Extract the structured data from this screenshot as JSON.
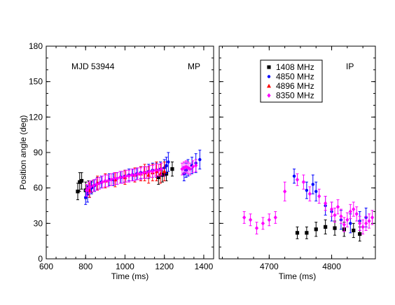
{
  "colors": {
    "1408 MHz": "#000000",
    "4850 MHz": "#0000ff",
    "4896 MHz": "#ff0000",
    "8350 MHz": "#ff00ff"
  },
  "legend": [
    {
      "name": "1408 MHz",
      "marker": "square",
      "color": "#000000"
    },
    {
      "name": "4850 MHz",
      "marker": "circle",
      "color": "#0000ff"
    },
    {
      "name": "4896 MHz",
      "marker": "triangle",
      "color": "#ff0000"
    },
    {
      "name": "8350 MHz",
      "marker": "diamond",
      "color": "#ff00ff"
    }
  ],
  "chart_data": [
    {
      "type": "scatter",
      "panel": "left",
      "annotations": [
        "MJD 53944",
        "MP"
      ],
      "xlabel": "Time (ms)",
      "ylabel": "Position angle (deg)",
      "xlim": [
        600,
        1450
      ],
      "ylim": [
        0,
        180
      ],
      "xticks": [
        600,
        800,
        1000,
        1200,
        1400
      ],
      "yticks": [
        0,
        30,
        60,
        90,
        120,
        150,
        180
      ],
      "grid": false,
      "series": [
        {
          "name": "1408 MHz",
          "color": "#000000",
          "marker": "square",
          "points": [
            [
              760,
              57,
              7
            ],
            [
              770,
              65,
              8
            ],
            [
              780,
              66,
              7
            ],
            [
              800,
              58,
              7
            ],
            [
              815,
              60,
              6
            ],
            [
              830,
              61,
              5
            ],
            [
              1170,
              69,
              6
            ],
            [
              1190,
              71,
              6
            ],
            [
              1210,
              72,
              6
            ],
            [
              1240,
              76,
              6
            ]
          ]
        },
        {
          "name": "4850 MHz",
          "color": "#0000ff",
          "marker": "circle",
          "points": [
            [
              800,
              52,
              6
            ],
            [
              810,
              55,
              7
            ],
            [
              820,
              58,
              6
            ],
            [
              830,
              60,
              5
            ],
            [
              845,
              62,
              5
            ],
            [
              860,
              64,
              5
            ],
            [
              880,
              65,
              5
            ],
            [
              900,
              66,
              5
            ],
            [
              920,
              67,
              5
            ],
            [
              940,
              67,
              5
            ],
            [
              960,
              68,
              5
            ],
            [
              980,
              69,
              5
            ],
            [
              1000,
              70,
              5
            ],
            [
              1020,
              71,
              5
            ],
            [
              1040,
              71,
              5
            ],
            [
              1060,
              72,
              5
            ],
            [
              1080,
              73,
              5
            ],
            [
              1100,
              73,
              5
            ],
            [
              1120,
              74,
              6
            ],
            [
              1140,
              75,
              6
            ],
            [
              1160,
              75,
              6
            ],
            [
              1180,
              76,
              6
            ],
            [
              1200,
              77,
              7
            ],
            [
              1210,
              79,
              7
            ],
            [
              1220,
              82,
              8
            ],
            [
              1300,
              72,
              6
            ],
            [
              1310,
              75,
              6
            ],
            [
              1320,
              77,
              7
            ],
            [
              1340,
              79,
              7
            ],
            [
              1360,
              81,
              8
            ],
            [
              1380,
              84,
              8
            ]
          ]
        },
        {
          "name": "4896 MHz",
          "color": "#ff0000",
          "marker": "triangle",
          "points": [
            [
              820,
              58,
              6
            ],
            [
              860,
              64,
              6
            ],
            [
              900,
              66,
              6
            ],
            [
              950,
              67,
              6
            ],
            [
              1000,
              69,
              6
            ],
            [
              1050,
              71,
              6
            ],
            [
              1080,
              72,
              6
            ],
            [
              1100,
              73,
              7
            ],
            [
              1120,
              71,
              7
            ],
            [
              1140,
              73,
              7
            ],
            [
              1160,
              74,
              8
            ],
            [
              1180,
              72,
              8
            ],
            [
              1200,
              74,
              8
            ]
          ]
        },
        {
          "name": "8350 MHz",
          "color": "#ff00ff",
          "marker": "diamond",
          "points": [
            [
              805,
              58,
              5
            ],
            [
              815,
              60,
              5
            ],
            [
              825,
              61,
              5
            ],
            [
              840,
              62,
              5
            ],
            [
              855,
              63,
              5
            ],
            [
              870,
              64,
              5
            ],
            [
              885,
              65,
              5
            ],
            [
              900,
              66,
              5
            ],
            [
              915,
              66,
              5
            ],
            [
              930,
              67,
              5
            ],
            [
              945,
              68,
              5
            ],
            [
              960,
              68,
              5
            ],
            [
              975,
              69,
              5
            ],
            [
              990,
              69,
              5
            ],
            [
              1005,
              70,
              5
            ],
            [
              1020,
              70,
              5
            ],
            [
              1035,
              71,
              5
            ],
            [
              1050,
              71,
              5
            ],
            [
              1065,
              72,
              5
            ],
            [
              1080,
              72,
              5
            ],
            [
              1095,
              73,
              5
            ],
            [
              1110,
              73,
              5
            ],
            [
              1125,
              74,
              5
            ],
            [
              1140,
              74,
              5
            ],
            [
              1155,
              75,
              5
            ],
            [
              1170,
              75,
              5
            ],
            [
              1185,
              76,
              5
            ],
            [
              1290,
              76,
              5
            ],
            [
              1300,
              77,
              5
            ],
            [
              1310,
              78,
              5
            ],
            [
              1320,
              77,
              5
            ],
            [
              1330,
              76,
              5
            ],
            [
              1345,
              78,
              5
            ],
            [
              1360,
              79,
              5
            ]
          ]
        }
      ]
    },
    {
      "type": "scatter",
      "panel": "right",
      "annotations": [
        "IP"
      ],
      "xlabel": "Time (ms)",
      "xlim": [
        4620,
        4870
      ],
      "ylim": [
        0,
        180
      ],
      "xticks": [
        4700,
        4800
      ],
      "yticks": [
        0,
        30,
        60,
        90,
        120,
        150,
        180
      ],
      "grid": false,
      "series": [
        {
          "name": "1408 MHz",
          "color": "#000000",
          "marker": "square",
          "points": [
            [
              4745,
              22,
              5
            ],
            [
              4760,
              22,
              5
            ],
            [
              4775,
              25,
              6
            ],
            [
              4790,
              27,
              6
            ],
            [
              4805,
              26,
              6
            ],
            [
              4820,
              25,
              6
            ],
            [
              4835,
              24,
              6
            ],
            [
              4845,
              21,
              6
            ]
          ]
        },
        {
          "name": "4850 MHz",
          "color": "#0000ff",
          "marker": "circle",
          "points": [
            [
              4740,
              70,
              6
            ],
            [
              4760,
              58,
              7
            ],
            [
              4770,
              63,
              8
            ],
            [
              4775,
              57,
              8
            ],
            [
              4790,
              45,
              8
            ],
            [
              4800,
              40,
              8
            ],
            [
              4815,
              33,
              8
            ],
            [
              4830,
              30,
              8
            ],
            [
              4845,
              32,
              8
            ],
            [
              4855,
              35,
              8
            ]
          ]
        },
        {
          "name": "8350 MHz",
          "color": "#ff00ff",
          "marker": "diamond",
          "points": [
            [
              4660,
              35,
              5
            ],
            [
              4670,
              33,
              5
            ],
            [
              4680,
              26,
              5
            ],
            [
              4690,
              30,
              5
            ],
            [
              4700,
              33,
              5
            ],
            [
              4710,
              35,
              5
            ],
            [
              4725,
              57,
              8
            ],
            [
              4745,
              67,
              5
            ],
            [
              4755,
              65,
              6
            ],
            [
              4765,
              55,
              6
            ],
            [
              4780,
              53,
              6
            ],
            [
              4790,
              47,
              6
            ],
            [
              4800,
              42,
              6
            ],
            [
              4805,
              37,
              6
            ],
            [
              4810,
              44,
              6
            ],
            [
              4815,
              36,
              6
            ],
            [
              4820,
              29,
              6
            ],
            [
              4825,
              33,
              6
            ],
            [
              4830,
              40,
              6
            ],
            [
              4835,
              42,
              6
            ],
            [
              4840,
              38,
              6
            ],
            [
              4845,
              30,
              6
            ],
            [
              4850,
              27,
              6
            ],
            [
              4855,
              30,
              6
            ],
            [
              4860,
              32,
              6
            ],
            [
              4865,
              35,
              6
            ]
          ]
        }
      ]
    }
  ]
}
